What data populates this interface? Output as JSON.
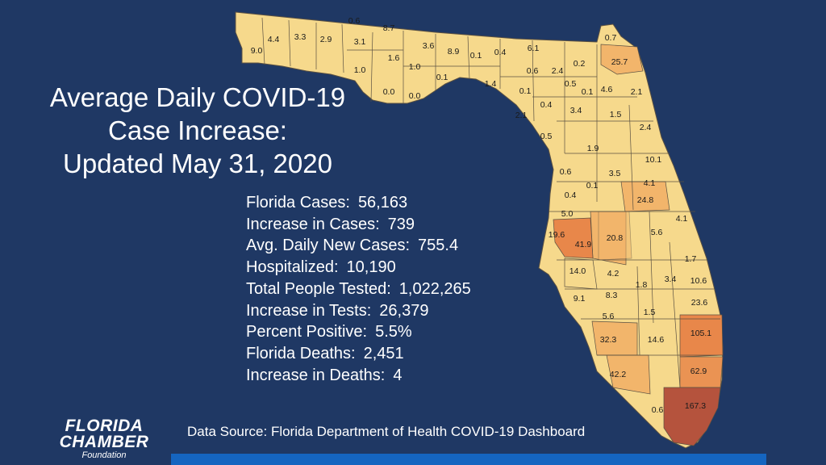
{
  "title_lines": [
    "Average Daily COVID-19",
    "Case Increase:",
    "Updated May 31, 2020"
  ],
  "stats": [
    {
      "label": "Florida Cases:",
      "value": "56,163"
    },
    {
      "label": "Increase in Cases:",
      "value": "739"
    },
    {
      "label": "Avg. Daily New Cases:",
      "value": "755.4"
    },
    {
      "label": "Hospitalized:",
      "value": "10,190"
    },
    {
      "label": "Total People Tested:",
      "value": "1,022,265"
    },
    {
      "label": "Increase in Tests:",
      "value": "26,379"
    },
    {
      "label": "Percent Positive:",
      "value": "5.5%"
    },
    {
      "label": "Florida Deaths:",
      "value": "2,451"
    },
    {
      "label": "Increase in Deaths:",
      "value": "4"
    }
  ],
  "source": "Data Source:  Florida Department of Health COVID-19 Dashboard",
  "logo": {
    "line1": "FLORIDA",
    "line2": "CHAMBER",
    "line3": "Foundation"
  },
  "colors": {
    "background": "#1f3864",
    "low": "#f6d98c",
    "mid": "#f2b56b",
    "high": "#e8874a",
    "highest": "#b5533d",
    "bar": "#1565c0"
  },
  "county_values": [
    "9.0",
    "4.4",
    "3.3",
    "2.9",
    "0.6",
    "3.1",
    "8.7",
    "1.0",
    "1.6",
    "1.0",
    "3.6",
    "8.9",
    "0.1",
    "0.4",
    "6.1",
    "0.7",
    "0.2",
    "25.7",
    "0.0",
    "0.0",
    "0.1",
    "1.4",
    "0.6",
    "2.4",
    "0.5",
    "0.1",
    "4.6",
    "2.1",
    "0.1",
    "0.4",
    "3.4",
    "1.5",
    "2.1",
    "2.4",
    "0.5",
    "1.9",
    "10.1",
    "0.6",
    "3.5",
    "0.1",
    "4.1",
    "0.4",
    "24.8",
    "5.0",
    "19.6",
    "41.9",
    "20.8",
    "5.6",
    "4.1",
    "1.7",
    "14.0",
    "4.2",
    "1.8",
    "3.4",
    "10.6",
    "9.1",
    "8.3",
    "23.6",
    "5.6",
    "1.5",
    "105.1",
    "32.3",
    "14.6",
    "62.9",
    "42.2",
    "0.6",
    "167.3"
  ]
}
